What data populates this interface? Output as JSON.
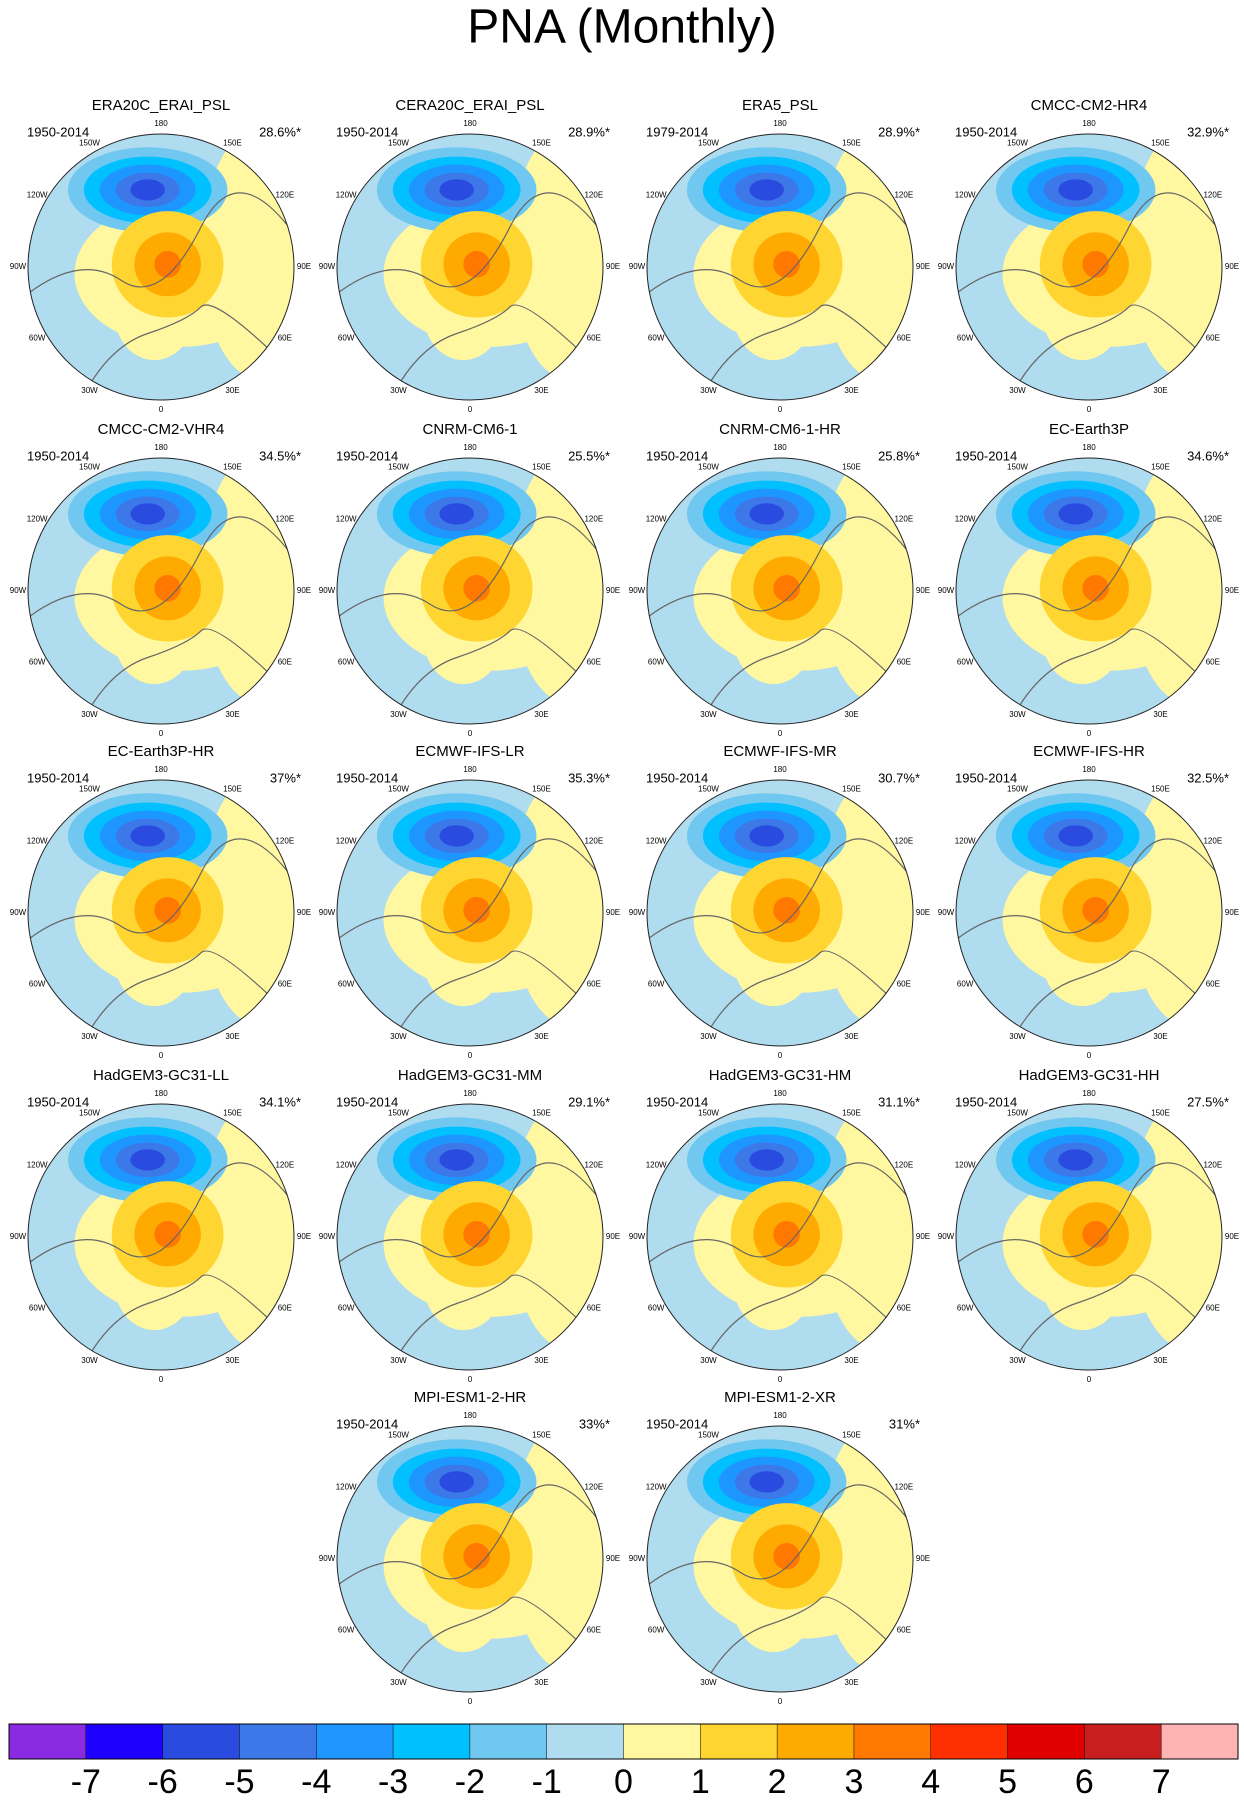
{
  "chart_data": {
    "type": "polar-map",
    "title": "PNA (Monthly)",
    "lonticks": [
      0,
      {
        "value": 30,
        "label": "30E"
      },
      {
        "value": 60,
        "label": "60E"
      },
      {
        "value": 90,
        "label": "90E"
      },
      {
        "value": 120,
        "label": "120E"
      },
      {
        "value": 150,
        "label": "150E"
      },
      180,
      {
        "value": -150,
        "label": "150W"
      },
      {
        "value": -120,
        "label": "120W"
      },
      {
        "value": -90,
        "label": "90W"
      },
      {
        "value": -60,
        "label": "60W"
      },
      {
        "value": -30,
        "label": "30W"
      }
    ],
    "panels": [
      {
        "title": "ERA20C_ERAI_PSL",
        "period": "1950-2014",
        "variance": "28.6%*"
      },
      {
        "title": "CERA20C_ERAI_PSL",
        "period": "1950-2014",
        "variance": "28.9%*"
      },
      {
        "title": "ERA5_PSL",
        "period": "1979-2014",
        "variance": "28.9%*"
      },
      {
        "title": "CMCC-CM2-HR4",
        "period": "1950-2014",
        "variance": "32.9%*"
      },
      {
        "title": "CMCC-CM2-VHR4",
        "period": "1950-2014",
        "variance": "34.5%*"
      },
      {
        "title": "CNRM-CM6-1",
        "period": "1950-2014",
        "variance": "25.5%*"
      },
      {
        "title": "CNRM-CM6-1-HR",
        "period": "1950-2014",
        "variance": "25.8%*"
      },
      {
        "title": "EC-Earth3P",
        "period": "1950-2014",
        "variance": "34.6%*"
      },
      {
        "title": "EC-Earth3P-HR",
        "period": "1950-2014",
        "variance": "37%*"
      },
      {
        "title": "ECMWF-IFS-LR",
        "period": "1950-2014",
        "variance": "35.3%*"
      },
      {
        "title": "ECMWF-IFS-MR",
        "period": "1950-2014",
        "variance": "30.7%*"
      },
      {
        "title": "ECMWF-IFS-HR",
        "period": "1950-2014",
        "variance": "32.5%*"
      },
      {
        "title": "HadGEM3-GC31-LL",
        "period": "1950-2014",
        "variance": "34.1%*"
      },
      {
        "title": "HadGEM3-GC31-MM",
        "period": "1950-2014",
        "variance": "29.1%*"
      },
      {
        "title": "HadGEM3-GC31-HM",
        "period": "1950-2014",
        "variance": "31.1%*"
      },
      {
        "title": "HadGEM3-GC31-HH",
        "period": "1950-2014",
        "variance": "27.5%*"
      },
      {
        "title": "MPI-ESM1-2-HR",
        "period": "1950-2014",
        "variance": "33%*"
      },
      {
        "title": "MPI-ESM1-2-XR",
        "period": "1950-2014",
        "variance": "31%*"
      }
    ],
    "colorbar": {
      "ticks": [
        -7,
        -6,
        -5,
        -4,
        -3,
        -2,
        -1,
        0,
        1,
        2,
        3,
        4,
        5,
        6,
        7
      ],
      "colors": [
        "#8a2be2",
        "#1e00ff",
        "#2a4be0",
        "#3c78e8",
        "#1e96ff",
        "#00c0ff",
        "#70c8f0",
        "#b0dcf0",
        "#fff8a0",
        "#ffd531",
        "#ffaa00",
        "#ff7800",
        "#ff3000",
        "#e00000",
        "#c81e1e",
        "#ffb4b4"
      ]
    }
  }
}
